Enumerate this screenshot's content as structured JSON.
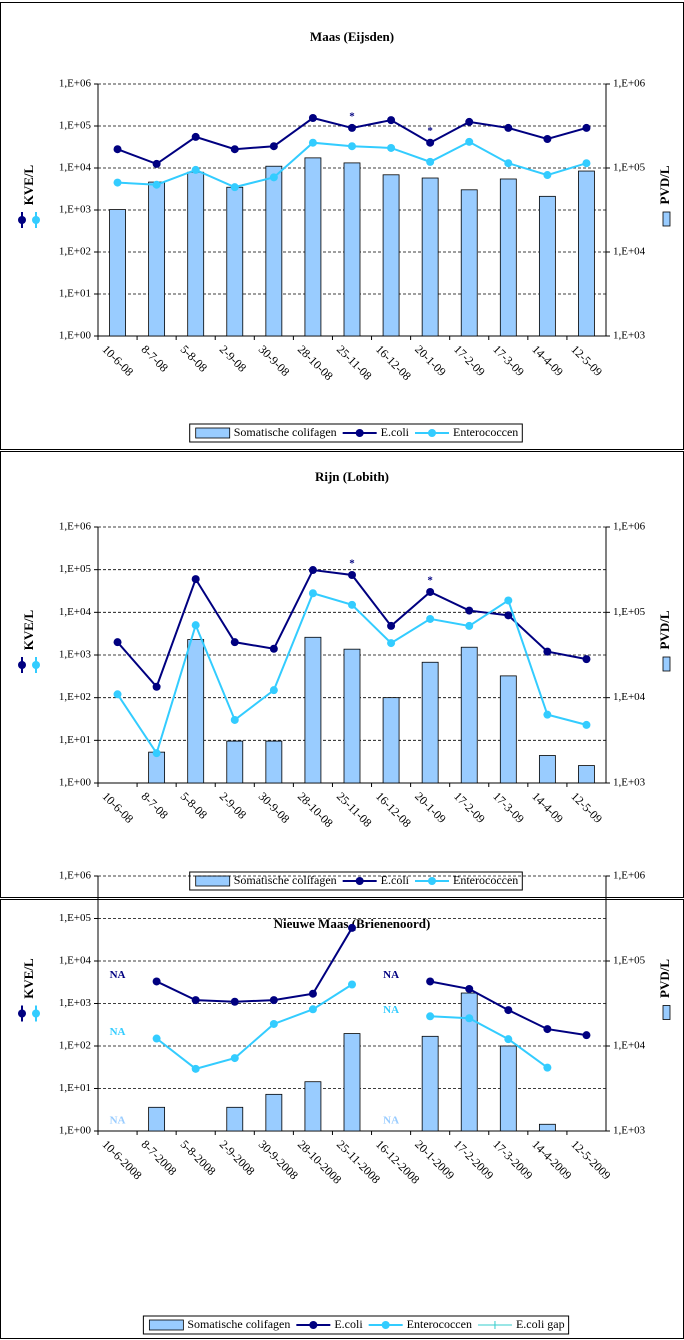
{
  "chart_data": [
    {
      "type": "combo",
      "title": "Maas (Eijsden)",
      "ylabel": "KVE/L",
      "y2label": "PVD/L",
      "log_y": true,
      "grid": true,
      "categories": [
        "10-6-08",
        "8-7-08",
        "5-8-08",
        "2-9-08",
        "30-9-08",
        "28-10-08",
        "25-11-08",
        "16-12-08",
        "20-1-09",
        "17-2-09",
        "17-3-09",
        "14-4-09",
        "12-5-09"
      ],
      "ylim": [
        1,
        1000000
      ],
      "yticks": [
        {
          "value": 1,
          "label": "1,E+00"
        },
        {
          "value": 10,
          "label": "1,E+01"
        },
        {
          "value": 100,
          "label": "1,E+02"
        },
        {
          "value": 1000,
          "label": "1,E+03"
        },
        {
          "value": 10000,
          "label": "1,E+04"
        },
        {
          "value": 100000,
          "label": "1,E+05"
        },
        {
          "value": 1000000,
          "label": "1,E+06"
        }
      ],
      "y2lim": [
        1000,
        1000000
      ],
      "y2ticks": [
        {
          "value": 1000,
          "label": "1,E+03"
        },
        {
          "value": 10000,
          "label": "1,E+04"
        },
        {
          "value": 100000,
          "label": "1,E+05"
        },
        {
          "value": 1000000,
          "label": "1,E+06"
        }
      ],
      "series": [
        {
          "name": "Somatische colifagen",
          "kind": "bar",
          "axis": "y2",
          "color": "#99ccff",
          "values": [
            32000,
            68000,
            89000,
            59000,
            105000,
            132000,
            115000,
            83000,
            76000,
            55000,
            74000,
            46000,
            92000
          ]
        },
        {
          "name": "E.coli",
          "kind": "line",
          "color": "#000080",
          "values": [
            28000,
            12500,
            55000,
            28000,
            33000,
            155000,
            90000,
            138000,
            40000,
            125000,
            90000,
            49000,
            90000
          ]
        },
        {
          "name": "Enterococcen",
          "kind": "line",
          "color": "#33ccff",
          "values": [
            4500,
            4000,
            9000,
            3500,
            6000,
            40000,
            33000,
            30000,
            14000,
            42000,
            13000,
            6800,
            13000
          ]
        }
      ],
      "annotations": [
        {
          "text": "*",
          "category": 6,
          "series": 1
        },
        {
          "text": "*",
          "category": 8,
          "series": 1
        }
      ]
    },
    {
      "type": "combo",
      "title": "Rijn (Lobith)",
      "ylabel": "KVE/L",
      "y2label": "PVD/L",
      "log_y": true,
      "grid": true,
      "categories": [
        "10-6-08",
        "8-7-08",
        "5-8-08",
        "2-9-08",
        "30-9-08",
        "28-10-08",
        "25-11-08",
        "16-12-08",
        "20-1-09",
        "17-2-09",
        "17-3-09",
        "14-4-09",
        "12-5-09"
      ],
      "ylim": [
        1,
        1000000
      ],
      "yticks": [
        {
          "value": 1,
          "label": "1,E+00"
        },
        {
          "value": 10,
          "label": "1,E+01"
        },
        {
          "value": 100,
          "label": "1,E+02"
        },
        {
          "value": 1000,
          "label": "1,E+03"
        },
        {
          "value": 10000,
          "label": "1,E+04"
        },
        {
          "value": 100000,
          "label": "1,E+05"
        },
        {
          "value": 1000000,
          "label": "1,E+06"
        }
      ],
      "y2lim": [
        1000,
        1000000
      ],
      "y2ticks": [
        {
          "value": 1000,
          "label": "1,E+03"
        },
        {
          "value": 10000,
          "label": "1,E+04"
        },
        {
          "value": 100000,
          "label": "1,E+05"
        },
        {
          "value": 1000000,
          "label": "1,E+06"
        }
      ],
      "series": [
        {
          "name": "Somatische colifagen",
          "kind": "bar",
          "axis": "y2",
          "color": "#99ccff",
          "values": [
            null,
            2300,
            48000,
            3100,
            3100,
            51000,
            37000,
            10000,
            26000,
            39000,
            18000,
            2100,
            1600
          ]
        },
        {
          "name": "E.coli",
          "kind": "line",
          "color": "#000080",
          "values": [
            2000,
            180,
            60000,
            2000,
            1400,
            98000,
            75000,
            4800,
            30000,
            11000,
            8500,
            1200,
            800
          ]
        },
        {
          "name": "Enterococcen",
          "kind": "line",
          "color": "#33ccff",
          "values": [
            120,
            5,
            5000,
            30,
            150,
            28000,
            15000,
            1900,
            7000,
            4800,
            19000,
            40,
            23
          ]
        }
      ],
      "annotations": [
        {
          "text": "*",
          "category": 6,
          "series": 1
        },
        {
          "text": "*",
          "category": 8,
          "series": 1
        }
      ]
    },
    {
      "type": "combo",
      "title": "Nieuwe Maas (Brienenoord)",
      "ylabel": "KVE/L",
      "y2label": "PVD/L",
      "log_y": true,
      "grid": true,
      "categories": [
        "10-6-2008",
        "8-7-2008",
        "5-8-2008",
        "2-9-2008",
        "30-9-2008",
        "28-10-2008",
        "25-11-2008",
        "16-12-2008",
        "20-1-2009",
        "17-2-2009",
        "17-3-2009",
        "14-4-2009",
        "12-5-2009"
      ],
      "ylim": [
        1,
        1000000
      ],
      "yticks": [
        {
          "value": 1,
          "label": "1,E+00"
        },
        {
          "value": 10,
          "label": "1,E+01"
        },
        {
          "value": 100,
          "label": "1,E+02"
        },
        {
          "value": 1000,
          "label": "1,E+03"
        },
        {
          "value": 10000,
          "label": "1,E+04"
        },
        {
          "value": 100000,
          "label": "1,E+05"
        },
        {
          "value": 1000000,
          "label": "1,E+06"
        }
      ],
      "y2lim": [
        1000,
        1000000
      ],
      "y2ticks": [
        {
          "value": 1000,
          "label": "1,E+03"
        },
        {
          "value": 10000,
          "label": "1,E+04"
        },
        {
          "value": 100000,
          "label": "1,E+05"
        },
        {
          "value": 1000000,
          "label": "1,E+06"
        }
      ],
      "series": [
        {
          "name": "Somatische colifagen",
          "kind": "bar",
          "axis": "y2",
          "color": "#99ccff",
          "values": [
            null,
            1900,
            null,
            1900,
            2700,
            3800,
            14000,
            null,
            13000,
            42000,
            10000,
            1200,
            null
          ]
        },
        {
          "name": "E.coli",
          "kind": "line",
          "color": "#000080",
          "values": [
            null,
            3300,
            1200,
            1100,
            1200,
            1700,
            60000,
            null,
            3300,
            2200,
            700,
            250,
            180
          ]
        },
        {
          "name": "Enterococcen",
          "kind": "line",
          "color": "#33ccff",
          "values": [
            null,
            150,
            29,
            52,
            330,
            730,
            2800,
            null,
            500,
            450,
            145,
            31,
            null
          ]
        },
        {
          "name": "E.coli gap",
          "kind": "line",
          "marker": "plus",
          "color": "#33cccc",
          "values": [
            null,
            null,
            null,
            null,
            null,
            null,
            null,
            null,
            null,
            null,
            null,
            null,
            null
          ]
        }
      ],
      "annotations": [
        {
          "text": "NA",
          "category": 0,
          "series": 1
        },
        {
          "text": "NA",
          "category": 7,
          "series": 1
        },
        {
          "text": "NA",
          "category": 0,
          "series": 2
        },
        {
          "text": "NA",
          "category": 7,
          "series": 2
        },
        {
          "text": "NA",
          "category": 0,
          "series": 0
        },
        {
          "text": "NA",
          "category": 7,
          "series": 0
        }
      ]
    }
  ]
}
